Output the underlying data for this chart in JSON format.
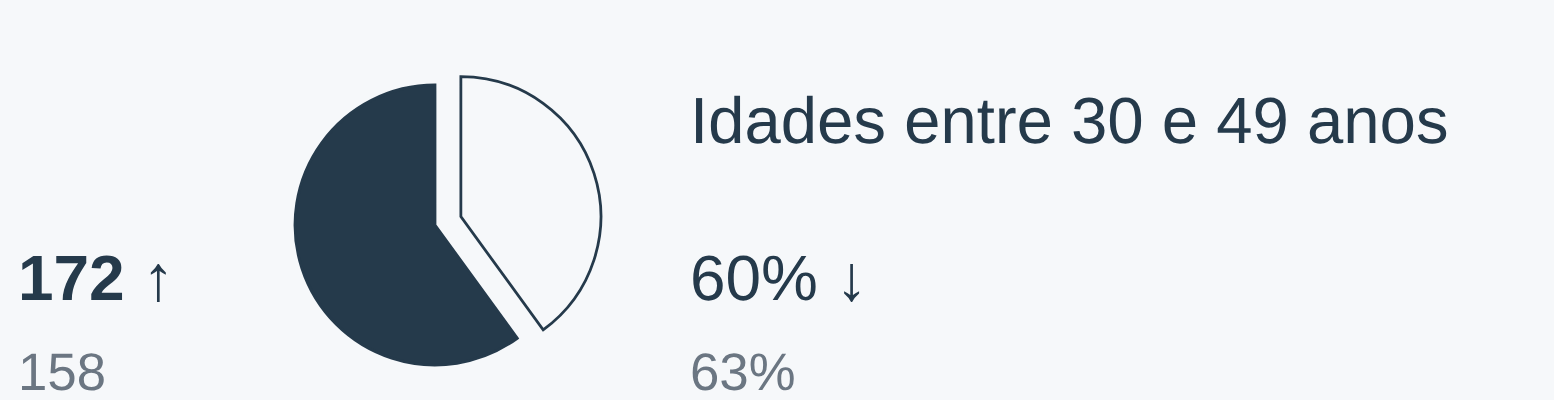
{
  "chart_data": {
    "type": "pie",
    "title": "Idades entre 30 e 49 anos",
    "categories": [
      null,
      null
    ],
    "values": [
      60,
      40
    ],
    "colors": [
      "#253a4b",
      "#f6f8fa"
    ],
    "annotations": [
      "172 ↑",
      "158",
      "60% ↓",
      "63%"
    ]
  }
}
